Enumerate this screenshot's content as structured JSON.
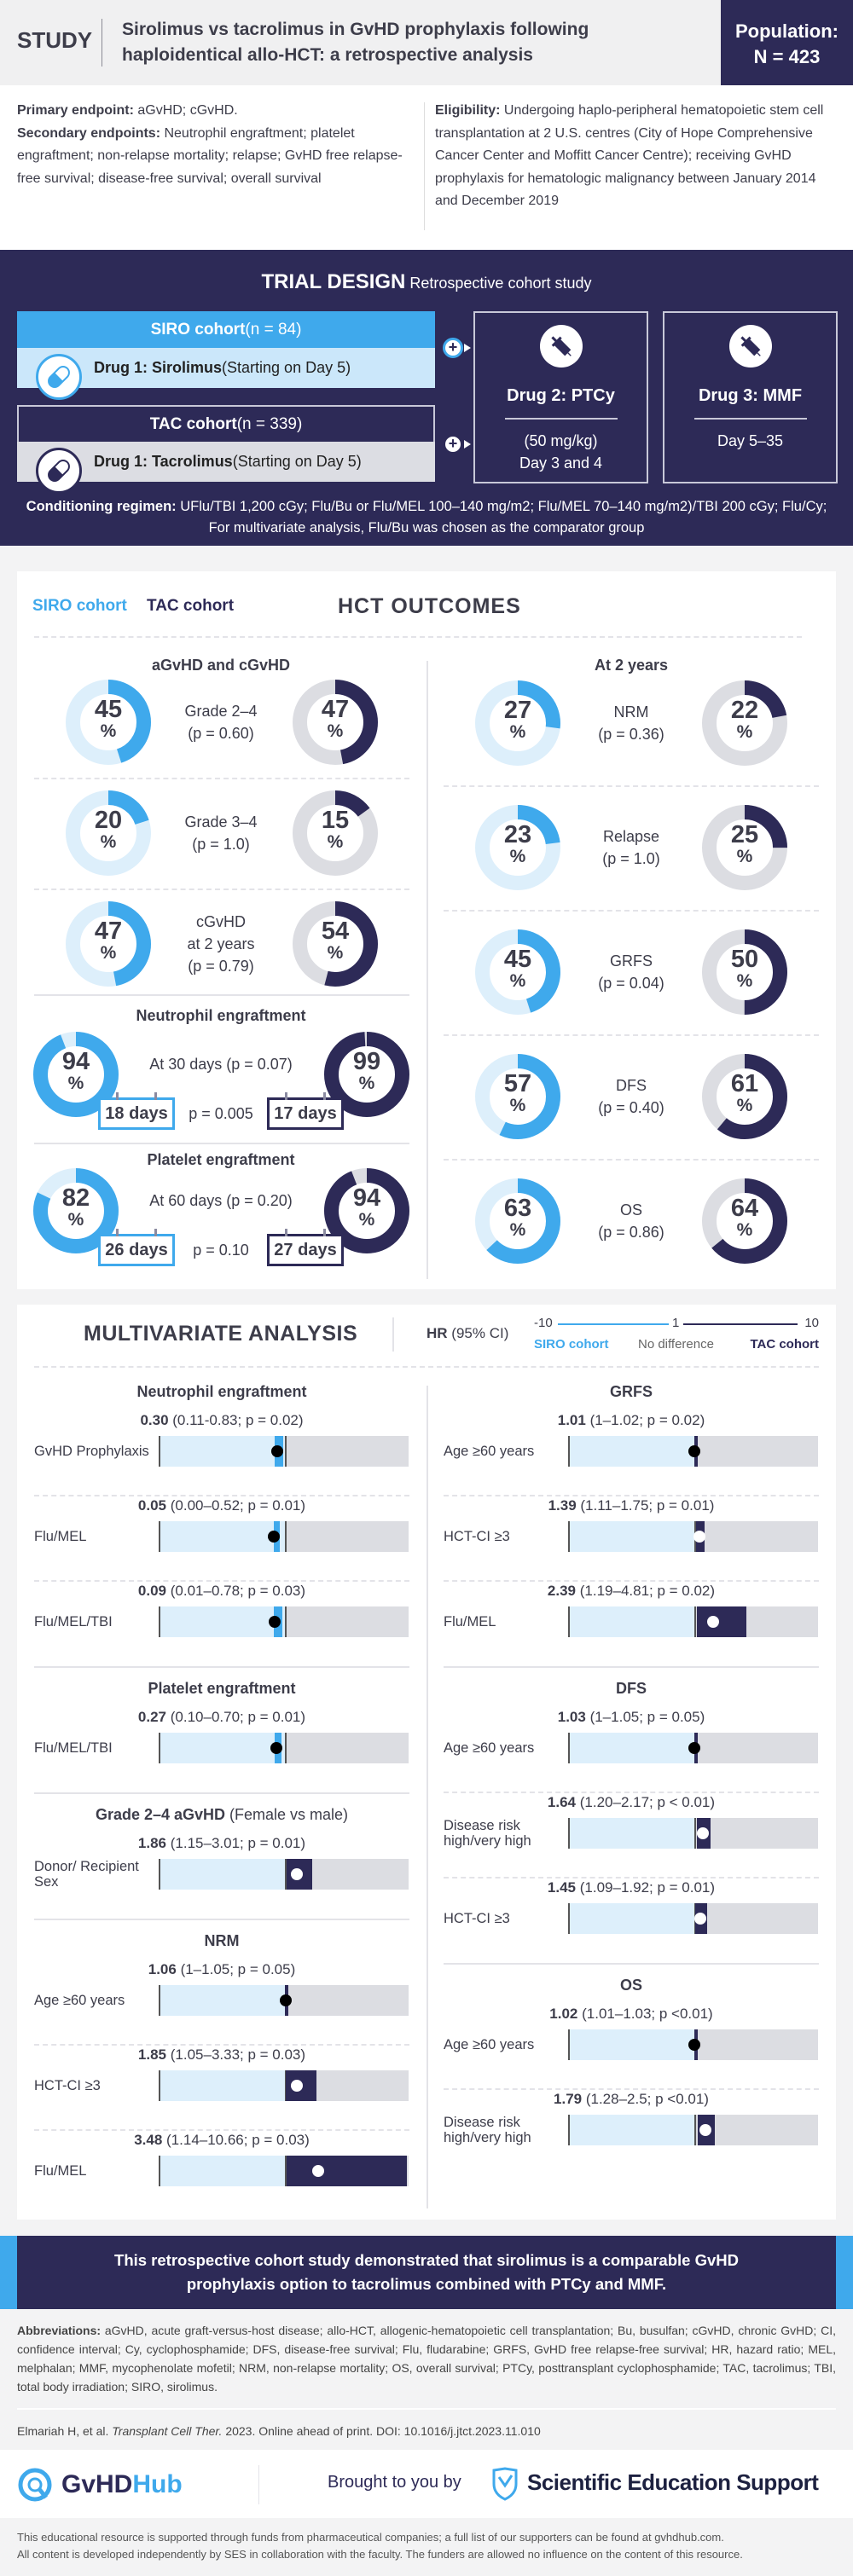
{
  "colors": {
    "siro": "#3fa9ec",
    "tac": "#2d2a57",
    "siro_track": "#ddeffb",
    "tac_track": "#dcdde2"
  },
  "header": {
    "study_label": "STUDY",
    "title": "Sirolimus vs tacrolimus in GvHD prophylaxis following haploidentical allo-HCT: a retrospective analysis",
    "population_label": "Population:",
    "population_value": "N = 423"
  },
  "endpoints": {
    "primary_label": "Primary endpoint:",
    "primary_text": " aGvHD; cGvHD.",
    "secondary_label": "Secondary endpoints:",
    "secondary_text": " Neutrophil engraftment; platelet engraftment; non-relapse mortality; relapse; GvHD free relapse-free survival; disease-free survival; overall survival",
    "eligibility_label": "Eligibility:",
    "eligibility_text": " Undergoing haplo-peripheral hematopoietic stem cell transplantation at 2 U.S. centres (City of Hope Comprehensive Cancer Center and Moffitt Cancer Centre); receiving GvHD prophylaxis for hematologic malignancy between January 2014 and December 2019"
  },
  "trial_design": {
    "title": "TRIAL DESIGN",
    "subtitle": " Retrospective cohort study",
    "siro": {
      "cohort": "SIRO cohort",
      "n": " (n = 84)",
      "drug": "Drug 1: Sirolimus",
      "detail": " (Starting on Day 5)"
    },
    "tac": {
      "cohort": "TAC cohort",
      "n": " (n = 339)",
      "drug": "Drug 1: Tacrolimus",
      "detail": " (Starting on Day 5)"
    },
    "plus": "+",
    "drug2": {
      "title": "Drug 2: PTCy",
      "line1": "(50 mg/kg)",
      "line2": "Day 3 and 4"
    },
    "drug3": {
      "title": "Drug 3: MMF",
      "line1": "Day 5–35"
    },
    "conditioning_label": "Conditioning regimen:",
    "conditioning_text": " UFlu/TBI 1,200 cGy; Flu/Bu or Flu/MEL 100–140 mg/m2; Flu/MEL 70–140 mg/m2)/TBI 200 cGy; Flu/Cy; For multivariate analysis, Flu/Bu was chosen as the comparator group"
  },
  "outcomes": {
    "legend_siro": "SIRO cohort",
    "legend_tac": "TAC cohort",
    "title": "HCT OUTCOMES",
    "pct": "%",
    "agvhd": {
      "title": "aGvHD and cGvHD",
      "rows": [
        {
          "siro": 45,
          "tac": 47,
          "label": "Grade 2–4",
          "p": "(p = 0.60)"
        },
        {
          "siro": 20,
          "tac": 15,
          "label": "Grade 3–4",
          "p": "(p = 1.0)"
        },
        {
          "siro": 47,
          "tac": 54,
          "label": "cGvHD",
          "label2": "at 2 years",
          "p": "(p = 0.79)"
        }
      ]
    },
    "neutrophil": {
      "title": "Neutrophil engraftment",
      "siro": 94,
      "tac": 99,
      "note": "At 30 days (p = 0.07)",
      "siro_days": "18 days",
      "p_days": "p = 0.005",
      "tac_days": "17 days"
    },
    "platelet": {
      "title": "Platelet engraftment",
      "siro": 82,
      "tac": 94,
      "note": "At 60 days (p = 0.20)",
      "siro_days": "26 days",
      "p_days": "p = 0.10",
      "tac_days": "27 days"
    },
    "two_year": {
      "title": "At 2 years",
      "rows": [
        {
          "siro": 27,
          "tac": 22,
          "label": "NRM",
          "p": "(p = 0.36)"
        },
        {
          "siro": 23,
          "tac": 25,
          "label": "Relapse",
          "p": "(p = 1.0)"
        },
        {
          "siro": 45,
          "tac": 50,
          "label": "GRFS",
          "p": "(p = 0.04)"
        },
        {
          "siro": 57,
          "tac": 61,
          "label": "DFS",
          "p": "(p = 0.40)"
        },
        {
          "siro": 63,
          "tac": 64,
          "label": "OS",
          "p": "(p = 0.86)"
        }
      ]
    }
  },
  "multivariate": {
    "title": "MULTIVARIATE ANALYSIS",
    "hr_label": "HR",
    "hr_ci": " (95% CI)",
    "scale_min": "-10",
    "scale_mid": "1",
    "scale_max": "10",
    "siro_label": "SIRO cohort",
    "mid_label": "No difference",
    "tac_label": "TAC cohort",
    "left": [
      {
        "title": "Neutrophil engraftment",
        "rows": [
          {
            "hr_label": "0.30",
            "detail": " (0.11-0.83; p = 0.02)",
            "label": "GvHD Prophylaxis",
            "hr": 0.3,
            "low": 0.11,
            "high": 0.83
          },
          {
            "hr_label": "0.05",
            "detail": " (0.00–0.52; p = 0.01)",
            "label": "Flu/MEL",
            "hr": 0.05,
            "low": 0.0,
            "high": 0.52
          },
          {
            "hr_label": "0.09",
            "detail": " (0.01–0.78; p = 0.03)",
            "label": "Flu/MEL/TBI",
            "hr": 0.09,
            "low": 0.01,
            "high": 0.78
          }
        ]
      },
      {
        "title": "Platelet engraftment",
        "rows": [
          {
            "hr_label": "0.27",
            "detail": " (0.10–0.70; p = 0.01)",
            "label": "Flu/MEL/TBI",
            "hr": 0.27,
            "low": 0.1,
            "high": 0.7
          }
        ]
      },
      {
        "title": "Grade 2–4 aGvHD",
        "subtitle": " (Female vs male)",
        "rows": [
          {
            "hr_label": "1.86",
            "detail": " (1.15–3.01; p = 0.01)",
            "label": "Donor/ Recipient Sex",
            "hr": 1.86,
            "low": 1.15,
            "high": 3.01
          }
        ]
      },
      {
        "title": "NRM",
        "rows": [
          {
            "hr_label": "1.06",
            "detail": " (1–1.05; p = 0.05)",
            "label": "Age ≥60 years",
            "hr": 1.06,
            "low": 1.0,
            "high": 1.05
          },
          {
            "hr_label": "1.85",
            "detail": " (1.05–3.33; p = 0.03)",
            "label": "HCT-CI ≥3",
            "hr": 1.85,
            "low": 1.05,
            "high": 3.33
          },
          {
            "hr_label": "3.48",
            "detail": " (1.14–10.66; p = 0.03)",
            "label": "Flu/MEL",
            "hr": 3.48,
            "low": 1.14,
            "high": 10.66
          }
        ]
      }
    ],
    "right": [
      {
        "title": "GRFS",
        "rows": [
          {
            "hr_label": "1.01",
            "detail": " (1–1.02; p = 0.02)",
            "label": "Age ≥60 years",
            "hr": 1.01,
            "low": 1.0,
            "high": 1.02
          },
          {
            "hr_label": "1.39",
            "detail": " (1.11–1.75; p = 0.01)",
            "label": "HCT-CI ≥3",
            "hr": 1.39,
            "low": 1.11,
            "high": 1.75
          },
          {
            "hr_label": "2.39",
            "detail": " (1.19–4.81; p = 0.02)",
            "label": "Flu/MEL",
            "hr": 2.39,
            "low": 1.19,
            "high": 4.81
          }
        ]
      },
      {
        "title": "DFS",
        "rows": [
          {
            "hr_label": "1.03",
            "detail": " (1–1.05; p = 0.05)",
            "label": "Age ≥60 years",
            "hr": 1.03,
            "low": 1.0,
            "high": 1.05
          },
          {
            "hr_label": "1.64",
            "detail": " (1.20–2.17; p < 0.01)",
            "label": "Disease risk high/very high",
            "hr": 1.64,
            "low": 1.2,
            "high": 2.17
          },
          {
            "hr_label": "1.45",
            "detail": " (1.09–1.92; p = 0.01)",
            "label": "HCT-CI ≥3",
            "hr": 1.45,
            "low": 1.09,
            "high": 1.92
          }
        ]
      },
      {
        "title": "OS",
        "rows": [
          {
            "hr_label": "1.02",
            "detail": " (1.01–1.03; p <0.01)",
            "label": "Age ≥60 years",
            "hr": 1.02,
            "low": 1.01,
            "high": 1.03
          },
          {
            "hr_label": "1.79",
            "detail": " (1.28–2.5; p <0.01)",
            "label": "Disease risk high/very high",
            "hr": 1.79,
            "low": 1.28,
            "high": 2.5
          }
        ]
      }
    ]
  },
  "conclusion": "This retrospective cohort study demonstrated that sirolimus is a comparable GvHD prophylaxis option to tacrolimus combined with PTCy and MMF.",
  "abbreviations_label": "Abbreviations:",
  "abbreviations_text": " aGvHD, acute graft-versus-host disease; allo-HCT, allogenic-hematopoietic cell transplantation; Bu, busulfan; cGvHD, chronic GvHD; CI, confidence interval; Cy, cyclophosphamide; DFS, disease-free survival; Flu, fludarabine; GRFS, GvHD free relapse-free survival; HR, hazard ratio; MEL, melphalan; MMF, mycophenolate mofetil; NRM, non-relapse mortality; OS, overall survival; PTCy, posttransplant cyclophosphamide; TAC, tacrolimus; TBI, total body irradiation; SIRO, sirolimus.",
  "citation": {
    "authors": "Elmariah H, et al. ",
    "journal": "Transplant Cell Ther.",
    "rest": " 2023. Online ahead of print. DOI: 10.1016/j.jtct.2023.11.010"
  },
  "footer": {
    "logo_gvhd": "GvHD",
    "logo_hub": "Hub",
    "brought_by": "Brought to you by",
    "ses": "Scientific Education Support",
    "disclaimer1": "This educational resource is supported through funds from pharmaceutical companies; a full list of our supporters can be found at gvhdhub.com.",
    "disclaimer2": "All content is developed independently by SES in collaboration with the faculty. The funders are allowed no influence on the content of this resource."
  }
}
